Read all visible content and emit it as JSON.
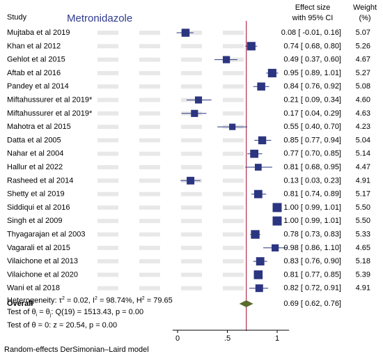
{
  "header": {
    "study": "Study",
    "effect_line1": "Effect size",
    "effect_line2": "with 95% CI",
    "weight_line1": "Weight",
    "weight_line2": "(%)"
  },
  "drug_label": "Metronidazole",
  "footer": {
    "heterogeneity_prefix": "Heterogeneity: τ",
    "tau2_value": " = 0.02, I",
    "i2_value": " = 98.74%, H",
    "h2_value": " = 79.65",
    "two": "2",
    "test_theta_prefix": "Test of θ",
    "sub_i": "i",
    "eq": " = θ",
    "sub_j": "j",
    "test_theta_suffix": ": Q(19) = 1513.43, p = 0.00",
    "test_zero": "Test of θ = 0: z = 20.54, p = 0.00",
    "model_note": "Random-effects DerSimonian–Laird model"
  },
  "colors": {
    "marker": "#2b3580",
    "overall_diamond": "#5c6b2e",
    "ref_line": "#b03050",
    "ci_line": "#2b3580",
    "watermark": "#e8e8e8"
  },
  "chart_data": {
    "type": "forest",
    "xlim": [
      -0.05,
      1.12
    ],
    "xticks": [
      0,
      0.5,
      1
    ],
    "xtick_labels": [
      "0",
      ".5",
      "1"
    ],
    "reference_line": 0.69,
    "studies": [
      {
        "label": "Mujtaba et al 2019",
        "es": 0.08,
        "lo": -0.01,
        "hi": 0.16,
        "ci_text": "0.08 [ -0.01, 0.16]",
        "weight": "5.07"
      },
      {
        "label": "Khan et al 2012",
        "es": 0.74,
        "lo": 0.68,
        "hi": 0.8,
        "ci_text": "0.74 [ 0.68, 0.80]",
        "weight": "5.26"
      },
      {
        "label": "Gehlot et al 2015",
        "es": 0.49,
        "lo": 0.37,
        "hi": 0.6,
        "ci_text": "0.49 [ 0.37, 0.60]",
        "weight": "4.67"
      },
      {
        "label": "Aftab et al 2016",
        "es": 0.95,
        "lo": 0.89,
        "hi": 1.01,
        "ci_text": "0.95 [ 0.89, 1.01]",
        "weight": "5.27"
      },
      {
        "label": "Pandey et al 2014",
        "es": 0.84,
        "lo": 0.76,
        "hi": 0.92,
        "ci_text": "0.84 [ 0.76, 0.92]",
        "weight": "5.08"
      },
      {
        "label": "Miftahussurer et al 2019*",
        "es": 0.21,
        "lo": 0.09,
        "hi": 0.34,
        "ci_text": "0.21 [ 0.09, 0.34]",
        "weight": "4.60"
      },
      {
        "label": "Miftahussurer et al 2019*",
        "es": 0.17,
        "lo": 0.04,
        "hi": 0.29,
        "ci_text": "0.17 [ 0.04, 0.29]",
        "weight": "4.63"
      },
      {
        "label": "Mahotra et al 2015",
        "es": 0.55,
        "lo": 0.4,
        "hi": 0.7,
        "ci_text": "0.55 [ 0.40, 0.70]",
        "weight": "4.23"
      },
      {
        "label": "Datta et al 2005",
        "es": 0.85,
        "lo": 0.77,
        "hi": 0.94,
        "ci_text": "0.85 [ 0.77, 0.94]",
        "weight": "5.04"
      },
      {
        "label": "Nahar et al 2004",
        "es": 0.77,
        "lo": 0.7,
        "hi": 0.85,
        "ci_text": "0.77 [ 0.70, 0.85]",
        "weight": "5.14"
      },
      {
        "label": "Hallur et al 2022",
        "es": 0.81,
        "lo": 0.68,
        "hi": 0.95,
        "ci_text": "0.81 [ 0.68, 0.95]",
        "weight": "4.47"
      },
      {
        "label": "Rasheed et al 2014",
        "es": 0.13,
        "lo": 0.03,
        "hi": 0.23,
        "ci_text": "0.13 [ 0.03, 0.23]",
        "weight": "4.91"
      },
      {
        "label": "Shetty et al 2019",
        "es": 0.81,
        "lo": 0.74,
        "hi": 0.89,
        "ci_text": "0.81 [ 0.74, 0.89]",
        "weight": "5.17"
      },
      {
        "label": "Siddiqui et al 2016",
        "es": 1.0,
        "lo": 0.99,
        "hi": 1.01,
        "ci_text": "1.00 [ 0.99, 1.01]",
        "weight": "5.50"
      },
      {
        "label": "Singh et al 2009",
        "es": 1.0,
        "lo": 0.99,
        "hi": 1.01,
        "ci_text": "1.00 [ 0.99, 1.01]",
        "weight": "5.50"
      },
      {
        "label": "Thyagarajan et al 2003",
        "es": 0.78,
        "lo": 0.73,
        "hi": 0.83,
        "ci_text": "0.78 [ 0.73, 0.83]",
        "weight": "5.33"
      },
      {
        "label": "Vagarali et al 2015",
        "es": 0.98,
        "lo": 0.86,
        "hi": 1.1,
        "ci_text": "0.98 [ 0.86, 1.10]",
        "weight": "4.65"
      },
      {
        "label": "Vilaichone et al 2013",
        "es": 0.83,
        "lo": 0.76,
        "hi": 0.9,
        "ci_text": "0.83 [ 0.76, 0.90]",
        "weight": "5.18"
      },
      {
        "label": "Vilaichone et al 2020",
        "es": 0.81,
        "lo": 0.77,
        "hi": 0.85,
        "ci_text": "0.81 [ 0.77, 0.85]",
        "weight": "5.39"
      },
      {
        "label": "Wani et al 2018",
        "es": 0.82,
        "lo": 0.72,
        "hi": 0.91,
        "ci_text": "0.82 [ 0.72, 0.91]",
        "weight": "4.91"
      }
    ],
    "overall": {
      "label": "Overall",
      "es": 0.69,
      "lo": 0.62,
      "hi": 0.76,
      "ci_text": "0.69 [ 0.62, 0.76]"
    }
  }
}
